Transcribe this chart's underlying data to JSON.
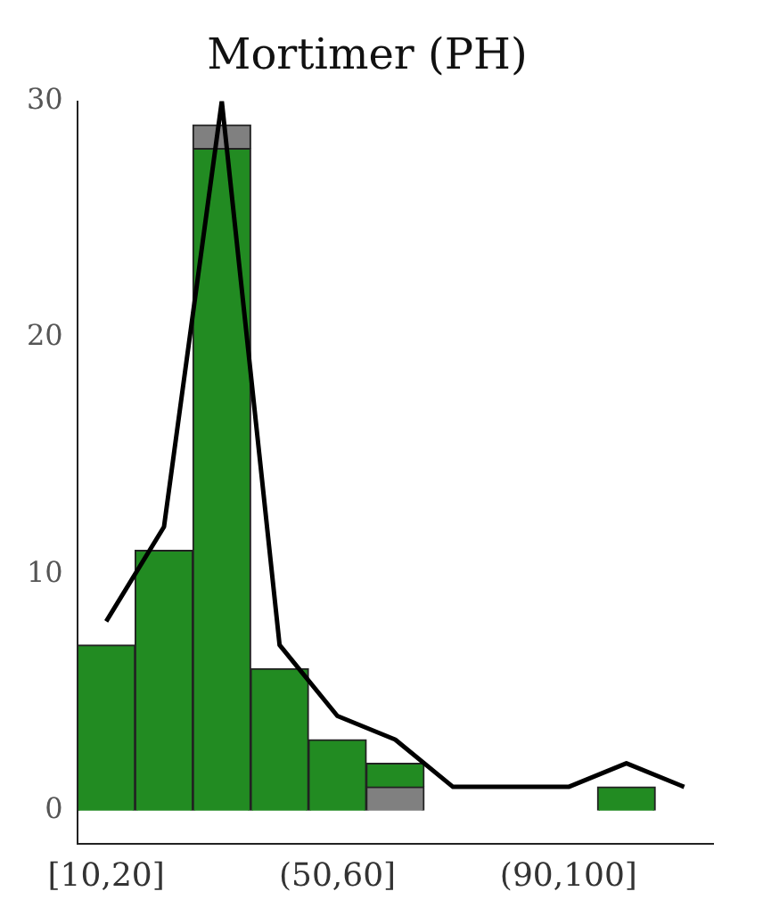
{
  "chart_data": {
    "type": "bar",
    "title": "Mortimer (PH)",
    "stacked": true,
    "categories": [
      "[10,20]",
      null,
      null,
      null,
      "(50,60]",
      null,
      null,
      null,
      "(90,100]",
      null,
      null
    ],
    "series": [
      {
        "color": "#808080",
        "values": [
          null,
          null,
          null,
          null,
          null,
          1,
          null,
          null,
          null,
          null,
          null
        ]
      },
      {
        "color": "#228b22",
        "values": [
          7,
          11,
          28,
          6,
          3,
          1,
          null,
          null,
          null,
          1,
          null
        ]
      },
      {
        "color": "#808080",
        "values": [
          null,
          null,
          1,
          null,
          null,
          null,
          null,
          null,
          null,
          null,
          null
        ]
      },
      {
        "type": "line",
        "color": "#000000",
        "values": [
          8,
          12,
          30,
          7,
          4,
          3,
          1,
          1,
          1,
          2,
          1
        ]
      }
    ],
    "ylim": [
      -1.4,
      30
    ],
    "yticks": [
      0,
      10,
      20,
      30
    ],
    "grid": false,
    "legend": false
  }
}
